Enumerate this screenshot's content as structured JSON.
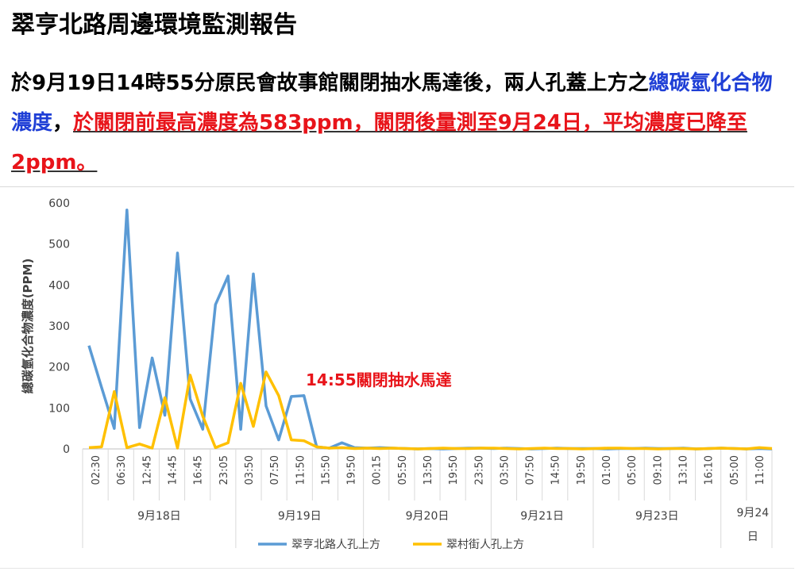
{
  "header": {
    "title": "翠亨北路周邊環境監測報告",
    "para_part1": "於9月19日14時55分原民會故事館關閉抽水馬達後，兩人孔蓋上方之",
    "para_blue": "總碳氫化合物濃度",
    "para_comma": "，",
    "para_red": "於關閉前最高濃度為583ppm，關閉後量測至9月24日，平均濃度已降至2ppm。"
  },
  "colors": {
    "series1": "#5b9bd5",
    "series2": "#ffc000",
    "annotation": "#e8141a",
    "axis_text": "#404040"
  },
  "chart_data": {
    "type": "line",
    "ylabel": "總碳氫化合物濃度(PPM)",
    "ylim": [
      0,
      600
    ],
    "yticks": [
      0,
      100,
      200,
      300,
      400,
      500,
      600
    ],
    "x_tick_labels": [
      "02:30",
      "06:30",
      "12:45",
      "14:45",
      "16:45",
      "23:05",
      "03:50",
      "07:50",
      "11:50",
      "15:50",
      "19:50",
      "00:15",
      "05:50",
      "13:50",
      "19:50",
      "23:50",
      "03:50",
      "07:50",
      "14:50",
      "19:50",
      "01:00",
      "05:00",
      "09:10",
      "13:10",
      "16:10",
      "05:00",
      "11:00"
    ],
    "day_groups": [
      {
        "label": "9月18日",
        "ticks": 6
      },
      {
        "label": "9月19日",
        "ticks": 5
      },
      {
        "label": "9月20日",
        "ticks": 5
      },
      {
        "label": "9月21日",
        "ticks": 4
      },
      {
        "label": "9月23日",
        "ticks": 5
      },
      {
        "label": "9月24日",
        "ticks": 2
      }
    ],
    "annotation": "14:55關閉抽水馬達",
    "legend_position": "bottom",
    "series": [
      {
        "name": "翠亨北路人孔上方",
        "values": [
          252,
          150,
          50,
          583,
          52,
          222,
          82,
          478,
          122,
          48,
          352,
          422,
          48,
          427,
          105,
          22,
          128,
          130,
          5,
          2,
          15,
          3,
          2,
          3,
          2,
          1,
          0,
          1,
          0,
          1,
          2,
          2,
          1,
          2,
          1,
          0,
          1,
          2,
          1,
          1,
          1,
          0,
          1,
          1,
          2,
          1,
          1,
          2,
          0,
          1,
          2,
          1,
          0,
          1,
          0
        ]
      },
      {
        "name": "翠村街人孔上方",
        "values": [
          3,
          5,
          140,
          3,
          12,
          2,
          125,
          2,
          180,
          80,
          3,
          15,
          160,
          55,
          188,
          130,
          22,
          20,
          5,
          2,
          3,
          1,
          2,
          1,
          2,
          1,
          0,
          1,
          2,
          1,
          1,
          2,
          2,
          1,
          0,
          1,
          2,
          1,
          1,
          0,
          1,
          2,
          2,
          1,
          1,
          0,
          1,
          1,
          0,
          1,
          2,
          1,
          0,
          3,
          1
        ]
      }
    ]
  }
}
